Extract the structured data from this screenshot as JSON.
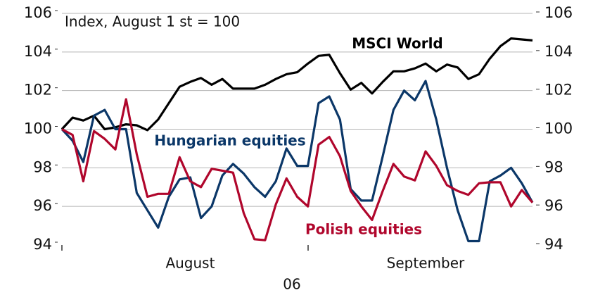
{
  "chart_data": {
    "type": "line",
    "annotation": "Index, August 1 st = 100",
    "categories": [
      null,
      null,
      null,
      null,
      null,
      null,
      null,
      null,
      null,
      null,
      null,
      null,
      "August",
      null,
      null,
      null,
      null,
      null,
      null,
      null,
      null,
      null,
      null,
      null,
      null,
      null,
      null,
      null,
      null,
      null,
      null,
      null,
      null,
      null,
      "September",
      null,
      null,
      null,
      null,
      null,
      null,
      null,
      null,
      null,
      null
    ],
    "x_group_label": "06",
    "series": [
      {
        "name": "MSCI World",
        "color": "#000000",
        "values": [
          100,
          100.6,
          100.45,
          100.7,
          100,
          100.1,
          100.25,
          100.2,
          99.95,
          100.5,
          101.35,
          102.2,
          102.45,
          102.65,
          102.3,
          102.6,
          102.1,
          102.1,
          102.1,
          102.3,
          102.6,
          102.85,
          102.95,
          103.4,
          103.8,
          103.85,
          102.9,
          102.05,
          102.4,
          101.85,
          102.45,
          103.0,
          103.0,
          103.15,
          103.4,
          103.0,
          103.35,
          103.2,
          102.6,
          102.85,
          103.65,
          104.3,
          104.7,
          104.65,
          104.6
        ]
      },
      {
        "name": "Hungarian equities",
        "color": "#0b3768",
        "values": [
          100,
          99.4,
          98.3,
          100.7,
          101,
          100,
          100,
          96.7,
          95.8,
          94.9,
          96.5,
          97.4,
          97.5,
          95.4,
          96,
          97.6,
          98.2,
          97.7,
          97,
          96.5,
          97.3,
          99,
          98.1,
          98.1,
          101.35,
          101.7,
          100.5,
          96.9,
          96.3,
          96.3,
          98.6,
          101,
          102,
          101.5,
          102.5,
          100.5,
          98,
          95.8,
          94.2,
          94.2,
          97.3,
          97.6,
          98,
          97.2,
          96.2
        ]
      },
      {
        "name": "Polish equities",
        "color": "#b0062c",
        "values": [
          100,
          99.7,
          97.3,
          99.9,
          99.5,
          98.95,
          101.55,
          98.7,
          96.5,
          96.65,
          96.65,
          98.55,
          97.3,
          97,
          97.95,
          97.85,
          97.75,
          95.65,
          94.3,
          94.25,
          96.1,
          97.45,
          96.5,
          96,
          99.2,
          99.6,
          98.6,
          96.8,
          96,
          95.3,
          96.8,
          98.2,
          97.55,
          97.35,
          98.85,
          98.1,
          97.1,
          96.8,
          96.6,
          97.2,
          97.25,
          97.25,
          96,
          96.85,
          96.2
        ]
      }
    ],
    "ylim": [
      94,
      106
    ],
    "yticks": [
      94,
      96,
      98,
      100,
      102,
      104,
      106
    ],
    "y2lim": [
      94,
      106
    ],
    "y2ticks": [
      94,
      96,
      98,
      100,
      102,
      104,
      106
    ],
    "grid": true
  }
}
